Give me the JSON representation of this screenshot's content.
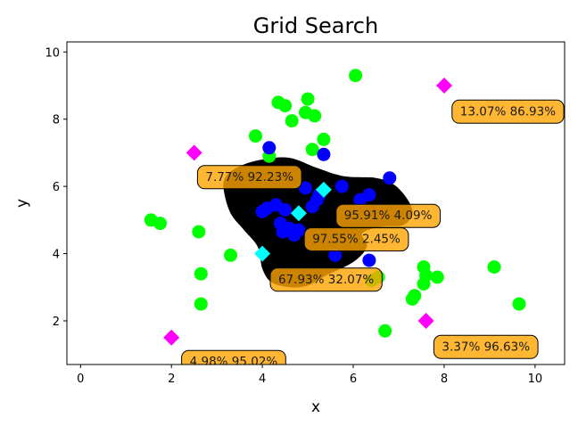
{
  "chart_data": {
    "type": "scatter",
    "title": "Grid Search",
    "xlabel": "x",
    "ylabel": "y",
    "xlim": [
      -0.3,
      10.65
    ],
    "ylim": [
      0.7,
      10.3
    ],
    "xticks": [
      0,
      2,
      4,
      6,
      8,
      10
    ],
    "yticks": [
      2,
      4,
      6,
      8,
      10
    ],
    "grid": false,
    "colors": {
      "class_green": "#00ff00",
      "class_blue": "#0000ff",
      "region": "#000000",
      "query_magenta": "#ff00ff",
      "query_cyan": "#00ffff",
      "annotation_fill": "#ffa500"
    },
    "region": {
      "description": "black blob",
      "outline": [
        [
          3.15,
          5.9
        ],
        [
          3.2,
          6.3
        ],
        [
          3.5,
          6.6
        ],
        [
          4.0,
          6.8
        ],
        [
          4.6,
          6.85
        ],
        [
          5.2,
          6.55
        ],
        [
          5.8,
          6.3
        ],
        [
          6.5,
          6.25
        ],
        [
          6.9,
          6.05
        ],
        [
          7.2,
          5.6
        ],
        [
          7.3,
          5.2
        ],
        [
          7.1,
          4.85
        ],
        [
          6.6,
          4.8
        ],
        [
          6.2,
          4.6
        ],
        [
          6.3,
          4.2
        ],
        [
          6.0,
          3.75
        ],
        [
          5.4,
          3.35
        ],
        [
          5.0,
          3.05
        ],
        [
          4.6,
          3.0
        ],
        [
          4.2,
          3.15
        ],
        [
          4.0,
          3.55
        ],
        [
          3.9,
          4.2
        ],
        [
          3.6,
          4.7
        ],
        [
          3.3,
          5.2
        ]
      ]
    },
    "series": [
      {
        "points": [
          [
            6.05,
            9.3
          ],
          [
            4.35,
            8.5
          ],
          [
            4.5,
            8.4
          ],
          [
            5.0,
            8.6
          ],
          [
            4.95,
            8.2
          ],
          [
            5.15,
            8.1
          ],
          [
            4.65,
            7.95
          ],
          [
            3.85,
            7.5
          ],
          [
            5.35,
            7.4
          ],
          [
            5.1,
            7.1
          ],
          [
            4.15,
            6.9
          ],
          [
            1.55,
            5.0
          ],
          [
            1.75,
            4.9
          ],
          [
            2.6,
            4.65
          ],
          [
            3.3,
            3.95
          ],
          [
            2.65,
            3.4
          ],
          [
            2.65,
            2.5
          ],
          [
            6.4,
            3.2
          ],
          [
            6.55,
            3.3
          ],
          [
            7.3,
            2.65
          ],
          [
            7.35,
            2.75
          ],
          [
            7.55,
            3.1
          ],
          [
            7.6,
            3.35
          ],
          [
            7.55,
            3.6
          ],
          [
            7.85,
            3.3
          ],
          [
            9.1,
            3.6
          ],
          [
            9.65,
            2.5
          ],
          [
            6.7,
            1.7
          ]
        ]
      },
      {
        "points": [
          [
            4.15,
            7.15
          ],
          [
            5.35,
            6.95
          ],
          [
            6.8,
            6.25
          ],
          [
            5.75,
            6.0
          ],
          [
            4.0,
            5.25
          ],
          [
            4.1,
            5.35
          ],
          [
            4.3,
            5.45
          ],
          [
            4.5,
            5.3
          ],
          [
            4.4,
            4.9
          ],
          [
            4.6,
            4.75
          ],
          [
            4.45,
            4.65
          ],
          [
            4.8,
            4.7
          ],
          [
            4.7,
            4.55
          ],
          [
            5.1,
            5.4
          ],
          [
            5.2,
            5.6
          ],
          [
            6.15,
            5.6
          ],
          [
            6.35,
            5.75
          ],
          [
            5.6,
            3.95
          ],
          [
            6.35,
            3.8
          ],
          [
            4.95,
            5.95
          ],
          [
            5.25,
            5.75
          ]
        ]
      }
    ],
    "queries": [
      {
        "x": 8.0,
        "y": 9.0,
        "color": "magenta",
        "label": "13.07% 86.93%"
      },
      {
        "x": 2.5,
        "y": 7.0,
        "color": "magenta",
        "label": "7.77% 92.23%"
      },
      {
        "x": 5.35,
        "y": 5.9,
        "color": "cyan",
        "label": "95.91% 4.09%"
      },
      {
        "x": 4.8,
        "y": 5.2,
        "color": "cyan",
        "label": "97.55% 2.45%"
      },
      {
        "x": 4.0,
        "y": 4.0,
        "color": "cyan",
        "label": "67.93% 32.07%"
      },
      {
        "x": 7.6,
        "y": 2.0,
        "color": "magenta",
        "label": "3.37% 96.63%"
      },
      {
        "x": 2.0,
        "y": 1.5,
        "color": "magenta",
        "label": "4.98% 95.02%"
      }
    ],
    "annotations": [
      {
        "text": "13.07% 86.93%",
        "x": 8.35,
        "y": 8.25
      },
      {
        "text": "7.77% 92.23%",
        "x": 2.75,
        "y": 6.3
      },
      {
        "text": "95.91% 4.09%",
        "x": 5.8,
        "y": 5.15
      },
      {
        "text": "97.55% 2.45%",
        "x": 5.1,
        "y": 4.45
      },
      {
        "text": "67.93% 32.07%",
        "x": 4.35,
        "y": 3.25
      },
      {
        "text": "3.37% 96.63%",
        "x": 7.95,
        "y": 1.25
      },
      {
        "text": "4.98% 95.02%",
        "x": 2.4,
        "y": 0.8
      }
    ]
  }
}
